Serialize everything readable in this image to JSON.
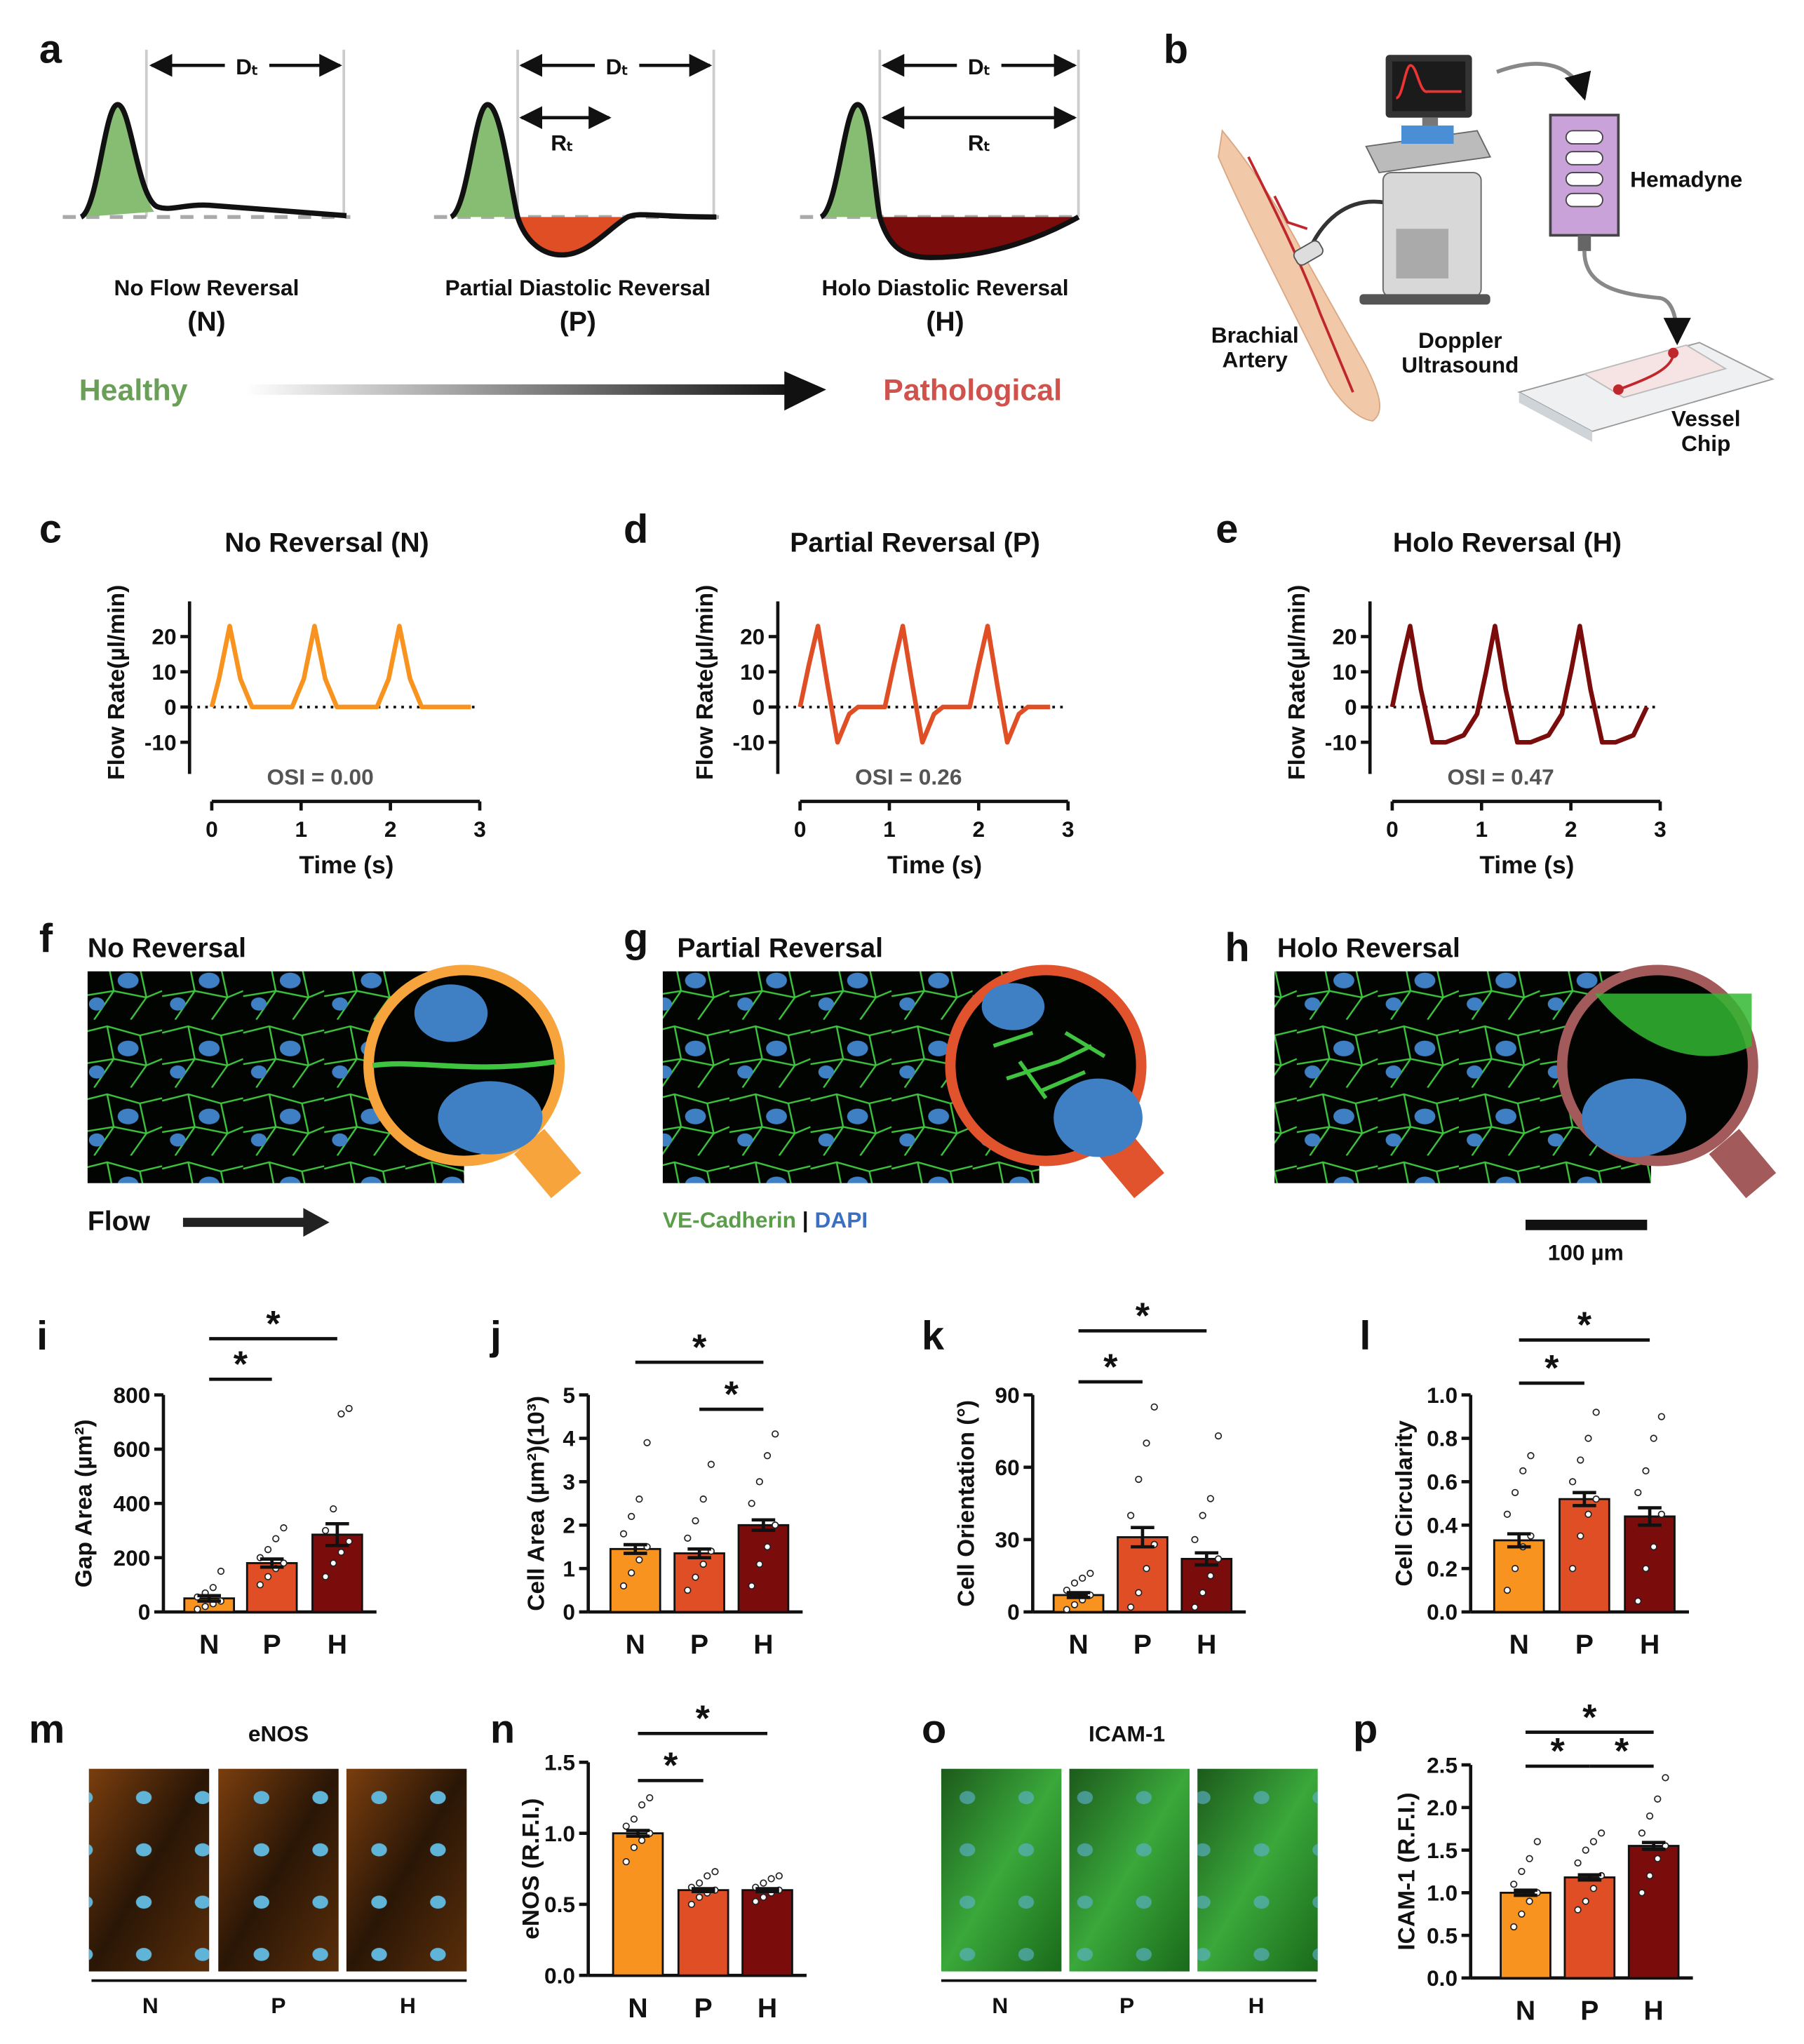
{
  "panel_labels": [
    "a",
    "b",
    "c",
    "d",
    "e",
    "f",
    "g",
    "h",
    "i",
    "j",
    "k",
    "l",
    "m",
    "n",
    "o",
    "p"
  ],
  "panel_a": {
    "waveforms": [
      {
        "name": "No Flow Reversal",
        "code": "(N)"
      },
      {
        "name": "Partial Diastolic Reversal",
        "code": "(P)"
      },
      {
        "name": "Holo Diastolic Reversal",
        "code": "(H)"
      }
    ],
    "dt_label": "Dₜ",
    "rt_label": "Rₜ",
    "healthy": "Healthy",
    "pathological": "Pathological"
  },
  "panel_b": {
    "artery": [
      "Brachial",
      "Artery"
    ],
    "doppler": [
      "Doppler",
      "Ultrasound"
    ],
    "hemadyne": "Hemadyne",
    "chip": [
      "Vessel",
      "Chip"
    ]
  },
  "chart_data": [
    {
      "type": "line",
      "title": "No Reversal (N)",
      "x_label": "Time (s)",
      "y_label": "Flow Rate(µl/min)",
      "x": [
        0,
        0.08,
        0.2,
        0.32,
        0.45,
        0.9,
        1.03,
        1.15,
        1.27,
        1.4,
        1.85,
        1.98,
        2.1,
        2.22,
        2.35,
        2.8,
        2.9
      ],
      "series": [
        {
          "color": "#f7931e",
          "values": [
            0,
            8,
            23,
            8,
            0,
            0,
            8,
            23,
            8,
            0,
            0,
            8,
            23,
            8,
            0,
            0,
            0
          ]
        }
      ],
      "xlim": [
        0,
        3
      ],
      "ylim": [
        -19,
        30
      ],
      "xticks": [
        0,
        1,
        2,
        3
      ],
      "yticks": [
        -10,
        0,
        10,
        20
      ],
      "annotation": "OSI = 0.00",
      "zero_line": true
    },
    {
      "type": "line",
      "title": "Partial Reversal (P)",
      "x_label": "Time (s)",
      "y_label": "Flow Rate(µl/min)",
      "x": [
        0,
        0.1,
        0.2,
        0.31,
        0.42,
        0.55,
        0.65,
        0.95,
        1.05,
        1.15,
        1.26,
        1.37,
        1.5,
        1.6,
        1.9,
        2.0,
        2.1,
        2.21,
        2.32,
        2.45,
        2.55,
        2.8
      ],
      "series": [
        {
          "color": "#e04e26",
          "values": [
            0,
            12,
            23,
            6,
            -10,
            -2,
            0,
            0,
            12,
            23,
            6,
            -10,
            -2,
            0,
            0,
            12,
            23,
            6,
            -10,
            -2,
            0,
            0
          ]
        }
      ],
      "xlim": [
        0,
        3
      ],
      "ylim": [
        -19,
        30
      ],
      "xticks": [
        0,
        1,
        2,
        3
      ],
      "yticks": [
        -10,
        0,
        10,
        20
      ],
      "annotation": "OSI = 0.26",
      "zero_line": true
    },
    {
      "type": "line",
      "title": "Holo Reversal (H)",
      "x_label": "Time (s)",
      "y_label": "Flow Rate(µl/min)",
      "x": [
        0,
        0.1,
        0.2,
        0.32,
        0.45,
        0.6,
        0.8,
        0.95,
        1.05,
        1.15,
        1.27,
        1.4,
        1.55,
        1.75,
        1.9,
        2.0,
        2.1,
        2.22,
        2.35,
        2.5,
        2.7,
        2.85
      ],
      "series": [
        {
          "color": "#7a0c0c",
          "values": [
            0,
            12,
            23,
            5,
            -10,
            -10,
            -8,
            -2,
            10,
            23,
            5,
            -10,
            -10,
            -8,
            -2,
            10,
            23,
            5,
            -10,
            -10,
            -8,
            0
          ]
        }
      ],
      "xlim": [
        0,
        3
      ],
      "ylim": [
        -19,
        30
      ],
      "xticks": [
        0,
        1,
        2,
        3
      ],
      "yticks": [
        -10,
        0,
        10,
        20
      ],
      "annotation": "OSI = 0.47",
      "zero_line": true
    },
    {
      "type": "bar",
      "y_label": "Gap Area (µm²)",
      "categories": [
        "N",
        "P",
        "H"
      ],
      "colors": [
        "#f7931e",
        "#e04e26",
        "#7a0c0c"
      ],
      "values": [
        50,
        180,
        285
      ],
      "errors": [
        10,
        15,
        40
      ],
      "points": [
        [
          10,
          20,
          30,
          40,
          55,
          70,
          90,
          150
        ],
        [
          100,
          130,
          160,
          180,
          200,
          230,
          270,
          310
        ],
        [
          130,
          180,
          220,
          260,
          300,
          380,
          730,
          750
        ]
      ],
      "ylim": [
        0,
        800
      ],
      "yticks": [
        0,
        200,
        400,
        600,
        800
      ],
      "significance": [
        {
          "pair": [
            "N",
            "P"
          ],
          "label": "*"
        },
        {
          "pair": [
            "N",
            "H"
          ],
          "label": "*"
        }
      ]
    },
    {
      "type": "bar",
      "y_label": "Cell Area (µm²)(10³)",
      "categories": [
        "N",
        "P",
        "H"
      ],
      "colors": [
        "#f7931e",
        "#e04e26",
        "#7a0c0c"
      ],
      "values": [
        1.45,
        1.35,
        2.0
      ],
      "errors": [
        0.1,
        0.1,
        0.12
      ],
      "points": [
        [
          0.6,
          0.9,
          1.2,
          1.5,
          1.8,
          2.2,
          2.6,
          3.9
        ],
        [
          0.5,
          0.8,
          1.1,
          1.4,
          1.7,
          2.1,
          2.6,
          3.4
        ],
        [
          0.6,
          1.1,
          1.5,
          2.0,
          2.5,
          3.0,
          3.6,
          4.1
        ]
      ],
      "ylim": [
        0,
        5
      ],
      "yticks": [
        0,
        1,
        2,
        3,
        4,
        5
      ],
      "significance": [
        {
          "pair": [
            "N",
            "H"
          ],
          "label": "*"
        },
        {
          "pair": [
            "P",
            "H"
          ],
          "label": "*"
        }
      ]
    },
    {
      "type": "bar",
      "y_label": "Cell Orientation (°)",
      "categories": [
        "N",
        "P",
        "H"
      ],
      "colors": [
        "#f7931e",
        "#e04e26",
        "#7a0c0c"
      ],
      "values": [
        7,
        31,
        22
      ],
      "errors": [
        1,
        4,
        2.5
      ],
      "points": [
        [
          1,
          3,
          5,
          7,
          9,
          12,
          14,
          16
        ],
        [
          2,
          8,
          18,
          28,
          40,
          55,
          70,
          85
        ],
        [
          2,
          8,
          15,
          22,
          30,
          40,
          47,
          73
        ]
      ],
      "ylim": [
        0,
        90
      ],
      "yticks": [
        0,
        30,
        60,
        90
      ],
      "significance": [
        {
          "pair": [
            "N",
            "P"
          ],
          "label": "*"
        },
        {
          "pair": [
            "N",
            "H"
          ],
          "label": "*"
        }
      ]
    },
    {
      "type": "bar",
      "y_label": "Cell Circularity",
      "categories": [
        "N",
        "P",
        "H"
      ],
      "colors": [
        "#f7931e",
        "#e04e26",
        "#7a0c0c"
      ],
      "values": [
        0.33,
        0.52,
        0.44
      ],
      "errors": [
        0.03,
        0.03,
        0.04
      ],
      "points": [
        [
          0.1,
          0.2,
          0.3,
          0.35,
          0.45,
          0.55,
          0.65,
          0.72
        ],
        [
          0.2,
          0.35,
          0.45,
          0.52,
          0.6,
          0.7,
          0.8,
          0.92
        ],
        [
          0.05,
          0.2,
          0.3,
          0.45,
          0.55,
          0.65,
          0.8,
          0.9
        ]
      ],
      "ylim": [
        0,
        1
      ],
      "yticks": [
        {
          "value": 0,
          "label": "0.0"
        },
        0.2,
        0.4,
        0.6,
        0.8,
        {
          "value": 1,
          "label": "1.0"
        }
      ],
      "significance": [
        {
          "pair": [
            "N",
            "P"
          ],
          "label": "*"
        },
        {
          "pair": [
            "N",
            "H"
          ],
          "label": "*"
        }
      ]
    },
    {
      "type": "bar",
      "y_label": "eNOS (R.F.I.)",
      "categories": [
        "N",
        "P",
        "H"
      ],
      "colors": [
        "#f7931e",
        "#e04e26",
        "#7a0c0c"
      ],
      "values": [
        1.0,
        0.6,
        0.6
      ],
      "errors": [
        0.02,
        0.01,
        0.01
      ],
      "points": [
        [
          0.8,
          0.9,
          0.95,
          1.0,
          1.05,
          1.1,
          1.2,
          1.25
        ],
        [
          0.5,
          0.55,
          0.58,
          0.6,
          0.62,
          0.65,
          0.7,
          0.73
        ],
        [
          0.52,
          0.55,
          0.58,
          0.6,
          0.62,
          0.65,
          0.68,
          0.7
        ]
      ],
      "ylim": [
        0,
        1.5
      ],
      "yticks": [
        {
          "value": 0,
          "label": "0.0"
        },
        0.5,
        {
          "value": 1,
          "label": "1.0"
        },
        1.5
      ],
      "significance": [
        {
          "pair": [
            "N",
            "P"
          ],
          "label": "*"
        },
        {
          "pair": [
            "N",
            "H"
          ],
          "label": "*"
        }
      ]
    },
    {
      "type": "bar",
      "y_label": "ICAM-1 (R.F.I.)",
      "categories": [
        "N",
        "P",
        "H"
      ],
      "colors": [
        "#f7931e",
        "#e04e26",
        "#7a0c0c"
      ],
      "values": [
        1.0,
        1.18,
        1.55
      ],
      "errors": [
        0.03,
        0.03,
        0.04
      ],
      "points": [
        [
          0.6,
          0.75,
          0.9,
          1.0,
          1.1,
          1.25,
          1.4,
          1.6
        ],
        [
          0.8,
          0.9,
          1.05,
          1.2,
          1.35,
          1.5,
          1.6,
          1.7
        ],
        [
          1.0,
          1.2,
          1.4,
          1.55,
          1.7,
          1.9,
          2.1,
          2.35
        ]
      ],
      "ylim": [
        0,
        2.5
      ],
      "yticks": [
        {
          "value": 0,
          "label": "0.0"
        },
        0.5,
        {
          "value": 1,
          "label": "1.0"
        },
        1.5,
        {
          "value": 2,
          "label": "2.0"
        },
        2.5
      ],
      "significance": [
        {
          "pair": [
            "N",
            "P"
          ],
          "label": "*"
        },
        {
          "pair": [
            "P",
            "H"
          ],
          "label": "*"
        },
        {
          "pair": [
            "N",
            "H"
          ],
          "label": "*"
        }
      ]
    }
  ],
  "micrographs": {
    "titles": [
      "No Reversal",
      "Partial Reversal",
      "Holo Reversal"
    ],
    "flow": "Flow",
    "stain_green": "VE-Cadherin",
    "separator": "|",
    "stain_blue": "DAPI",
    "scale_bar": "100 µm"
  },
  "panel_m": {
    "title": "eNOS",
    "lanes": [
      "N",
      "P",
      "H"
    ]
  },
  "panel_o": {
    "title": "ICAM-1",
    "lanes": [
      "N",
      "P",
      "H"
    ]
  }
}
